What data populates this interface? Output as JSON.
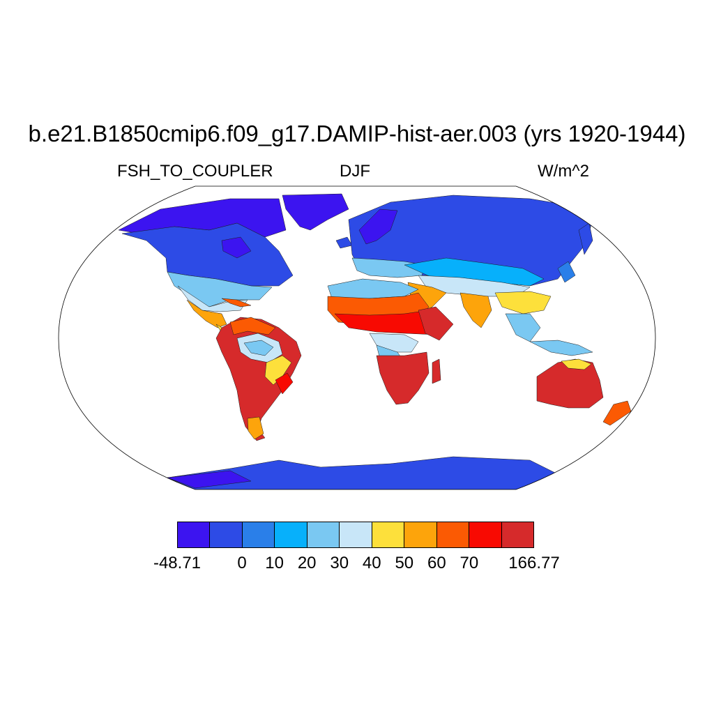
{
  "title": "b.e21.B1850cmip6.f09_g17.DAMIP-hist-aer.003 (yrs 1920-1944)",
  "subtitle_left": "FSH_TO_COUPLER",
  "subtitle_center": "DJF",
  "subtitle_right": "W/m^2",
  "colorbar": {
    "colors": [
      "#3c14f0",
      "#2d4be6",
      "#2a7fe9",
      "#07b0fb",
      "#7ac8f2",
      "#c8e6f8",
      "#fde03b",
      "#fda40b",
      "#fb5a03",
      "#f80a02",
      "#d62a2b"
    ],
    "labels": [
      "-48.71",
      "0",
      "10",
      "20",
      "30",
      "40",
      "50",
      "60",
      "70",
      "166.77"
    ]
  },
  "map": {
    "projection": "Robinson",
    "ocean_color": "#ffffff",
    "border_color": "#000000",
    "continents": [
      {
        "name": "north-america",
        "category": 1
      },
      {
        "name": "greenland",
        "category": 0
      },
      {
        "name": "south-america",
        "category": 10
      },
      {
        "name": "europe",
        "category": 1
      },
      {
        "name": "asia",
        "category": 1
      },
      {
        "name": "africa",
        "category": 8
      },
      {
        "name": "australia",
        "category": 10
      },
      {
        "name": "antarctica",
        "category": 1
      }
    ]
  }
}
